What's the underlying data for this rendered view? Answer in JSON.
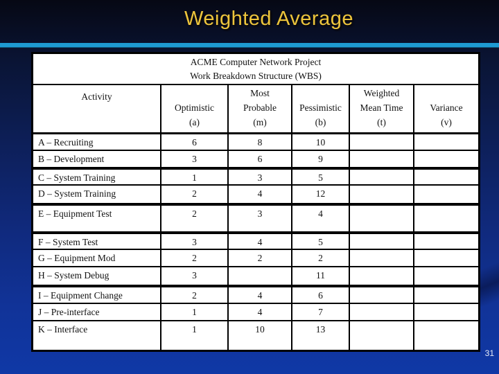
{
  "slide": {
    "title": "Weighted Average",
    "page_number": "31",
    "colors": {
      "title_text": "#EDC53C",
      "accent_bar": "#1E9AD2",
      "background_top": "#060814",
      "background_bottom": "#0F38A6",
      "table_background": "#FFFFFF",
      "table_border": "#000000",
      "table_text": "#111111",
      "page_number_text": "#E8ECF8"
    }
  },
  "table": {
    "title_lines": [
      "ACME Computer Network Project",
      "Work Breakdown Structure (WBS)"
    ],
    "columns": [
      {
        "id": "activity",
        "lines": [
          "Activity"
        ]
      },
      {
        "id": "optimistic",
        "lines": [
          "Optimistic",
          "(a)"
        ]
      },
      {
        "id": "most-probable",
        "lines": [
          "Most",
          "Probable",
          "(m)"
        ]
      },
      {
        "id": "pessimistic",
        "lines": [
          "Pessimistic",
          "(b)"
        ]
      },
      {
        "id": "weighted-mean-time",
        "lines": [
          "Weighted",
          "Mean Time",
          "(t)"
        ]
      },
      {
        "id": "variance",
        "lines": [
          "Variance",
          "(v)"
        ]
      }
    ],
    "rows": [
      {
        "cells": [
          "A – Recruiting",
          "6",
          "8",
          "10",
          "",
          ""
        ]
      },
      {
        "cells": [
          "B – Development",
          "3",
          "6",
          "9",
          "",
          ""
        ]
      },
      {
        "cells": [
          "C – System Training",
          "1",
          "3",
          "5",
          "",
          ""
        ]
      },
      {
        "cells": [
          "D – System Training",
          "2",
          "4",
          "12",
          "",
          ""
        ]
      },
      {
        "cells": [
          "E – Equipment Test",
          "2",
          "3",
          "4",
          "",
          ""
        ]
      },
      {
        "cells": [
          "F – System Test",
          "3",
          "4",
          "5",
          "",
          ""
        ]
      },
      {
        "cells": [
          "G – Equipment Mod",
          "2",
          "2",
          "2",
          "",
          ""
        ]
      },
      {
        "cells": [
          "H – System Debug",
          "3",
          "",
          "11",
          "",
          ""
        ]
      },
      {
        "cells": [
          "I – Equipment Change",
          "2",
          "4",
          "6",
          "",
          ""
        ]
      },
      {
        "cells": [
          "J – Pre-interface",
          "1",
          "4",
          "7",
          "",
          ""
        ]
      },
      {
        "cells": [
          "K – Interface",
          "1",
          "10",
          "13",
          "",
          ""
        ]
      }
    ]
  }
}
